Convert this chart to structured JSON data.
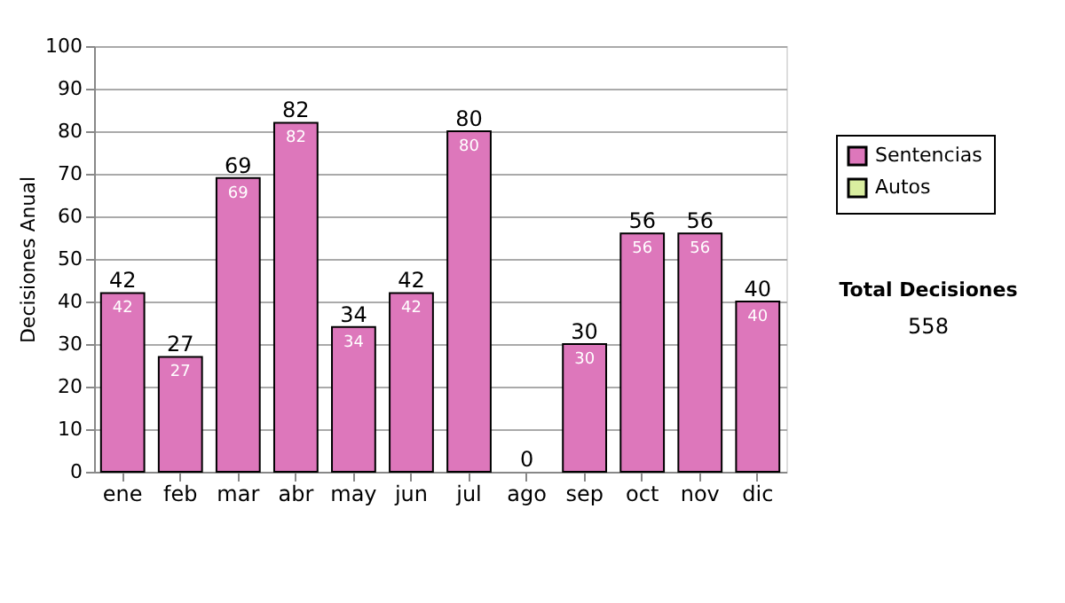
{
  "chart_data": {
    "type": "bar",
    "stacked": true,
    "ylabel": "Decisiones Anual",
    "categories": [
      "ene",
      "feb",
      "mar",
      "abr",
      "may",
      "jun",
      "jul",
      "ago",
      "sep",
      "oct",
      "nov",
      "dic"
    ],
    "series": [
      {
        "name": "Sentencias",
        "color": "#dd77bb",
        "values": [
          42,
          27,
          69,
          82,
          34,
          42,
          80,
          0,
          30,
          56,
          56,
          40
        ],
        "value_labels": [
          "42",
          "27",
          "69",
          "82",
          "34",
          "42",
          "80",
          null,
          "30",
          "56",
          "56",
          "40"
        ]
      },
      {
        "name": "Autos",
        "color": "#d9eea0",
        "values": [
          0,
          0,
          0,
          0,
          0,
          0,
          0,
          0,
          0,
          0,
          0,
          0
        ]
      }
    ],
    "totals": [
      "42",
      "27",
      "69",
      "82",
      "34",
      "42",
      "80",
      "0",
      "30",
      "56",
      "56",
      "40"
    ],
    "ylim": [
      0,
      100
    ],
    "yticks": [
      0,
      10,
      20,
      30,
      40,
      50,
      60,
      70,
      80,
      90,
      100
    ],
    "grid": "y",
    "legend": "right",
    "annotations": [
      "Total Decisiones",
      "558"
    ]
  }
}
